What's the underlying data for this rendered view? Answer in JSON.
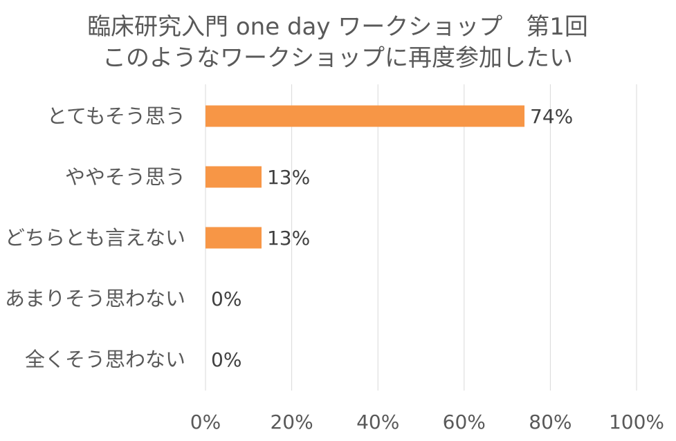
{
  "chart_data": {
    "type": "bar",
    "orientation": "horizontal",
    "title": "臨床研究入門 one day ワークショップ　第1回",
    "subtitle": "このようなワークショップに再度参加したい",
    "categories": [
      "とてもそう思う",
      "ややそう思う",
      "どちらとも言えない",
      "あまりそう思わない",
      "全くそう思わない"
    ],
    "values": [
      74,
      13,
      13,
      0,
      0
    ],
    "data_labels": [
      "74%",
      "13%",
      "13%",
      "0%",
      "0%"
    ],
    "xlim": [
      0,
      100
    ],
    "xticks": [
      0,
      20,
      40,
      60,
      80,
      100
    ],
    "xtick_labels": [
      "0%",
      "20%",
      "40%",
      "60%",
      "80%",
      "100%"
    ],
    "xlabel": "",
    "ylabel": "",
    "grid": true,
    "legend": "none",
    "bar_color": "#F79646"
  }
}
